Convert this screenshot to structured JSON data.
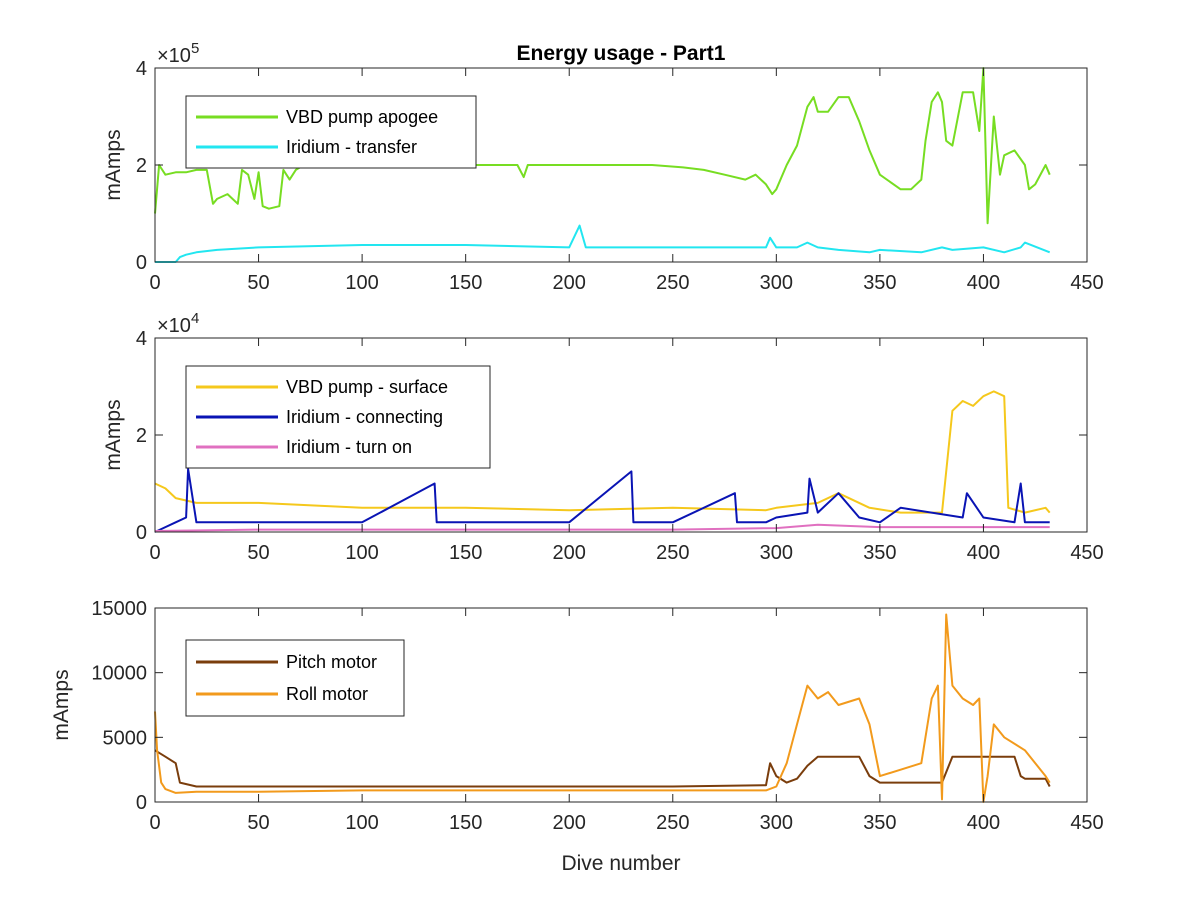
{
  "chart_data": [
    {
      "type": "line",
      "title": "Energy usage - Part1",
      "ylabel": "mAmps",
      "xlabel": "",
      "exponent_label": "×10",
      "exponent_power": "5",
      "xlim": [
        0,
        450
      ],
      "ylim": [
        0,
        400000
      ],
      "xticks": [
        0,
        50,
        100,
        150,
        200,
        250,
        300,
        350,
        400,
        450
      ],
      "yticks": [
        0,
        200000,
        400000
      ],
      "ytick_labels": [
        "0",
        "2",
        "4"
      ],
      "legend_position": "top-left",
      "series": [
        {
          "name": "VBD pump apogee",
          "color": "#77dd22",
          "x": [
            0,
            2,
            5,
            10,
            15,
            20,
            25,
            28,
            30,
            35,
            40,
            42,
            45,
            48,
            50,
            52,
            55,
            60,
            62,
            65,
            68,
            70,
            72,
            75,
            80,
            90,
            100,
            120,
            150,
            175,
            178,
            180,
            182,
            185,
            200,
            220,
            240,
            255,
            265,
            275,
            285,
            290,
            295,
            298,
            300,
            305,
            310,
            315,
            318,
            320,
            325,
            330,
            335,
            340,
            345,
            350,
            360,
            365,
            370,
            372,
            375,
            378,
            380,
            382,
            385,
            390,
            395,
            398,
            400,
            402,
            405,
            408,
            410,
            415,
            420,
            422,
            425,
            430,
            432
          ],
          "y": [
            100000,
            200000,
            180000,
            185000,
            185000,
            190000,
            190000,
            120000,
            130000,
            140000,
            120000,
            190000,
            180000,
            130000,
            185000,
            115000,
            110000,
            115000,
            190000,
            170000,
            190000,
            195000,
            195000,
            195000,
            195000,
            200000,
            200000,
            200000,
            200000,
            200000,
            175000,
            200000,
            200000,
            200000,
            200000,
            200000,
            200000,
            195000,
            190000,
            180000,
            170000,
            180000,
            160000,
            140000,
            150000,
            200000,
            240000,
            320000,
            340000,
            310000,
            310000,
            340000,
            340000,
            290000,
            230000,
            180000,
            150000,
            150000,
            170000,
            250000,
            330000,
            350000,
            330000,
            250000,
            240000,
            350000,
            350000,
            270000,
            400000,
            80000,
            300000,
            180000,
            220000,
            230000,
            200000,
            150000,
            160000,
            200000,
            180000
          ]
        },
        {
          "name": "Iridium - transfer",
          "color": "#22e6f0",
          "x": [
            0,
            10,
            12,
            15,
            20,
            30,
            50,
            100,
            150,
            200,
            205,
            208,
            250,
            295,
            297,
            300,
            310,
            315,
            320,
            330,
            345,
            350,
            370,
            380,
            385,
            400,
            410,
            418,
            420,
            432
          ],
          "y": [
            0,
            0,
            10000,
            15000,
            20000,
            25000,
            30000,
            35000,
            35000,
            30000,
            75000,
            30000,
            30000,
            30000,
            50000,
            30000,
            30000,
            40000,
            30000,
            25000,
            20000,
            25000,
            20000,
            30000,
            25000,
            30000,
            20000,
            30000,
            40000,
            20000
          ]
        }
      ]
    },
    {
      "type": "line",
      "title": "",
      "ylabel": "mAmps",
      "xlabel": "",
      "exponent_label": "×10",
      "exponent_power": "4",
      "xlim": [
        0,
        450
      ],
      "ylim": [
        0,
        40000
      ],
      "xticks": [
        0,
        50,
        100,
        150,
        200,
        250,
        300,
        350,
        400,
        450
      ],
      "yticks": [
        0,
        20000,
        40000
      ],
      "ytick_labels": [
        "0",
        "2",
        "4"
      ],
      "legend_position": "top-left",
      "series": [
        {
          "name": "VBD pump - surface",
          "color": "#f5c81c",
          "x": [
            0,
            5,
            10,
            20,
            50,
            100,
            150,
            200,
            250,
            295,
            300,
            320,
            330,
            345,
            360,
            380,
            385,
            390,
            395,
            400,
            405,
            410,
            412,
            420,
            430,
            432
          ],
          "y": [
            10000,
            9000,
            7000,
            6000,
            6000,
            5000,
            5000,
            4500,
            5000,
            4500,
            5000,
            6000,
            8000,
            5000,
            4000,
            4000,
            25000,
            27000,
            26000,
            28000,
            29000,
            28000,
            5000,
            4000,
            5000,
            4000
          ]
        },
        {
          "name": "Iridium - connecting",
          "color": "#0a14b4",
          "x": [
            0,
            5,
            10,
            15,
            16,
            20,
            50,
            100,
            135,
            136,
            150,
            200,
            230,
            231,
            250,
            280,
            281,
            295,
            300,
            315,
            316,
            320,
            330,
            340,
            350,
            360,
            390,
            392,
            400,
            415,
            418,
            420,
            432
          ],
          "y": [
            0,
            1000,
            2000,
            3000,
            13000,
            2000,
            2000,
            2000,
            10000,
            2000,
            2000,
            2000,
            12500,
            2000,
            2000,
            8000,
            2000,
            2000,
            3000,
            4000,
            11000,
            4000,
            8000,
            3000,
            2000,
            5000,
            3000,
            8000,
            3000,
            2000,
            10000,
            2000,
            2000
          ]
        },
        {
          "name": "Iridium - turn on",
          "color": "#e070c0",
          "x": [
            0,
            50,
            100,
            150,
            200,
            250,
            300,
            320,
            350,
            400,
            432
          ],
          "y": [
            200,
            500,
            500,
            500,
            500,
            500,
            800,
            1500,
            1000,
            1000,
            1000
          ]
        }
      ]
    },
    {
      "type": "line",
      "title": "",
      "ylabel": "mAmps",
      "xlabel": "Dive number",
      "exponent_label": "",
      "exponent_power": "",
      "xlim": [
        0,
        450
      ],
      "ylim": [
        0,
        15000
      ],
      "xticks": [
        0,
        50,
        100,
        150,
        200,
        250,
        300,
        350,
        400,
        450
      ],
      "yticks": [
        0,
        5000,
        10000,
        15000
      ],
      "ytick_labels": [
        "0",
        "5000",
        "10000",
        "15000"
      ],
      "legend_position": "top-left",
      "series": [
        {
          "name": "Pitch motor",
          "color": "#7a3d0c",
          "x": [
            0,
            5,
            10,
            12,
            20,
            50,
            100,
            150,
            200,
            250,
            295,
            297,
            300,
            305,
            310,
            315,
            320,
            340,
            345,
            350,
            360,
            380,
            385,
            400,
            415,
            418,
            420,
            430,
            432
          ],
          "y": [
            4000,
            3500,
            3000,
            1500,
            1200,
            1200,
            1200,
            1200,
            1200,
            1200,
            1300,
            3000,
            2000,
            1500,
            1800,
            2800,
            3500,
            3500,
            2000,
            1500,
            1500,
            1500,
            3500,
            3500,
            3500,
            2000,
            1800,
            1800,
            1200
          ]
        },
        {
          "name": "Roll motor",
          "color": "#f29a1c",
          "x": [
            0,
            1,
            3,
            5,
            10,
            20,
            50,
            100,
            150,
            200,
            250,
            295,
            300,
            305,
            310,
            315,
            320,
            325,
            330,
            340,
            345,
            350,
            360,
            370,
            375,
            378,
            380,
            382,
            385,
            390,
            395,
            398,
            400,
            402,
            405,
            410,
            420,
            430,
            432
          ],
          "y": [
            7000,
            4000,
            1500,
            1000,
            700,
            800,
            800,
            900,
            900,
            900,
            900,
            900,
            1200,
            3000,
            6000,
            9000,
            8000,
            8500,
            7500,
            8000,
            6000,
            2000,
            2500,
            3000,
            8000,
            9000,
            200,
            14500,
            9000,
            8000,
            7500,
            8000,
            0,
            2000,
            6000,
            5000,
            4000,
            2000,
            1500
          ]
        }
      ]
    }
  ]
}
